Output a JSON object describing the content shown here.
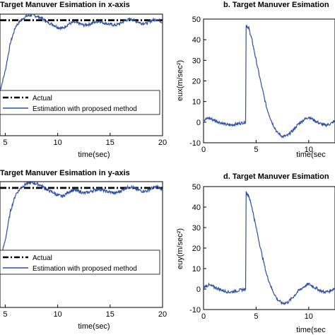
{
  "chart_data": [
    {
      "panel": "a",
      "type": "line",
      "title": "Target Manuver Esimation in x-axis",
      "xlabel": "time(sec)",
      "ylabel": "",
      "xlim": [
        4.5,
        20
      ],
      "ylim": [
        -10,
        50
      ],
      "xticks": [
        5,
        10,
        15,
        20
      ],
      "xtick_labels": [
        "5",
        "10",
        "15",
        "20"
      ],
      "yticks": [],
      "grid": false,
      "legend_position": "bottom-right",
      "series": [
        {
          "name": "Actual",
          "style": "dash-dot",
          "color": "#000000",
          "x": [
            4.5,
            20
          ],
          "y": [
            47,
            47
          ]
        },
        {
          "name": "Estimation with proposed method",
          "style": "solid",
          "color": "#2f4fa3",
          "x": [
            4.5,
            5.0,
            5.5,
            6.0,
            6.5,
            7.0,
            7.5,
            8.0,
            8.5,
            9.0,
            9.5,
            10.0,
            10.5,
            11.0,
            11.5,
            12.0,
            12.5,
            13.0,
            13.5,
            14.0,
            14.5,
            15.0,
            15.5,
            16.0,
            16.5,
            17.0,
            17.5,
            18.0,
            18.5,
            19.0,
            19.5,
            20.0
          ],
          "y": [
            12,
            22,
            36,
            44,
            47,
            49,
            49.5,
            49,
            48,
            46,
            45,
            43.5,
            43,
            45,
            46,
            45.5,
            44.5,
            45,
            46,
            46.5,
            45.5,
            45,
            44.5,
            45.5,
            47,
            47.5,
            46.5,
            45.5,
            45.5,
            47,
            47.5,
            46
          ]
        }
      ]
    },
    {
      "panel": "b",
      "type": "line",
      "title": "b. Target Manuver Esimation",
      "xlabel": "time(sec",
      "ylabel": "eux(m/sec²)",
      "xlim": [
        0,
        12.5
      ],
      "ylim": [
        -10,
        50
      ],
      "xticks": [
        0,
        5,
        10
      ],
      "xtick_labels": [
        "0",
        "5",
        "10"
      ],
      "yticks": [
        -10,
        0,
        10,
        20,
        30,
        40,
        50
      ],
      "ytick_labels": [
        "-10",
        "0",
        "10",
        "20",
        "30",
        "40",
        "50"
      ],
      "grid": false,
      "series": [
        {
          "color": "#2f4fa3",
          "x": [
            0,
            0.5,
            1.0,
            1.5,
            2.0,
            2.5,
            3.0,
            3.5,
            4.0,
            4.05,
            4.3,
            4.6,
            5.0,
            5.5,
            6.0,
            6.5,
            7.0,
            7.5,
            8.0,
            8.5,
            9.0,
            9.5,
            10.0,
            10.5,
            11.0,
            11.5,
            12.0,
            12.5
          ],
          "y": [
            1,
            2,
            1,
            0,
            -1,
            -1.5,
            -1,
            -0.5,
            0,
            47,
            45.5,
            40,
            30,
            18,
            7,
            0,
            -5,
            -7,
            -6.5,
            -4,
            -1,
            1,
            2.5,
            1,
            -0.5,
            -1.5,
            -1,
            0.5
          ]
        }
      ]
    },
    {
      "panel": "c",
      "type": "line",
      "title": "Target Manuver Esimation in y-axis",
      "xlabel": "time(sec)",
      "ylabel": "",
      "xlim": [
        4.5,
        20
      ],
      "ylim": [
        -10,
        50
      ],
      "xticks": [
        5,
        10,
        15,
        20
      ],
      "xtick_labels": [
        "5",
        "10",
        "15",
        "20"
      ],
      "yticks": [],
      "grid": false,
      "legend_position": "bottom-right",
      "series": [
        {
          "name": "Actual",
          "style": "dash-dot",
          "color": "#000000",
          "x": [
            4.5,
            20
          ],
          "y": [
            47,
            47
          ]
        },
        {
          "name": "Estimation with proposed method",
          "style": "solid",
          "color": "#2f4fa3",
          "x": [
            4.5,
            5.0,
            5.5,
            6.0,
            6.5,
            7.0,
            7.5,
            8.0,
            8.5,
            9.0,
            9.5,
            10.0,
            10.5,
            11.0,
            11.5,
            12.0,
            12.5,
            13.0,
            13.5,
            14.0,
            14.5,
            15.0,
            15.5,
            16.0,
            16.5,
            17.0,
            17.5,
            18.0,
            18.5,
            19.0,
            19.5,
            20.0
          ],
          "y": [
            12,
            22,
            36,
            44,
            47,
            49,
            49.5,
            49,
            48,
            46,
            45,
            43.5,
            43,
            45,
            46,
            45.5,
            44.5,
            45,
            46,
            46.5,
            45.5,
            45,
            44.5,
            45.5,
            47,
            47.5,
            46.5,
            45.5,
            45.5,
            47,
            47.5,
            46
          ]
        }
      ]
    },
    {
      "panel": "d",
      "type": "line",
      "title": "d. Target Manuver Esimation",
      "xlabel": "time(sec",
      "ylabel": "euy(m/sec²)",
      "xlim": [
        0,
        12.5
      ],
      "ylim": [
        -10,
        50
      ],
      "xticks": [
        0,
        5,
        10
      ],
      "xtick_labels": [
        "0",
        "5",
        "10"
      ],
      "yticks": [
        -10,
        0,
        10,
        20,
        30,
        40,
        50
      ],
      "ytick_labels": [
        "-10",
        "0",
        "10",
        "20",
        "30",
        "40",
        "50"
      ],
      "grid": false,
      "series": [
        {
          "color": "#2f4fa3",
          "x": [
            0,
            0.5,
            1.0,
            1.5,
            2.0,
            2.5,
            3.0,
            3.5,
            4.0,
            4.05,
            4.3,
            4.6,
            5.0,
            5.5,
            6.0,
            6.5,
            7.0,
            7.5,
            8.0,
            8.5,
            9.0,
            9.5,
            10.0,
            10.5,
            11.0,
            11.5,
            12.0,
            12.5
          ],
          "y": [
            1,
            2,
            1,
            0,
            -1,
            -1.5,
            -1,
            -0.5,
            0,
            47,
            45.5,
            40,
            30,
            18,
            7,
            0,
            -5,
            -7,
            -6.5,
            -4,
            -1,
            1,
            2.5,
            1,
            -0.5,
            -1.5,
            -1,
            0.5
          ]
        }
      ]
    }
  ]
}
